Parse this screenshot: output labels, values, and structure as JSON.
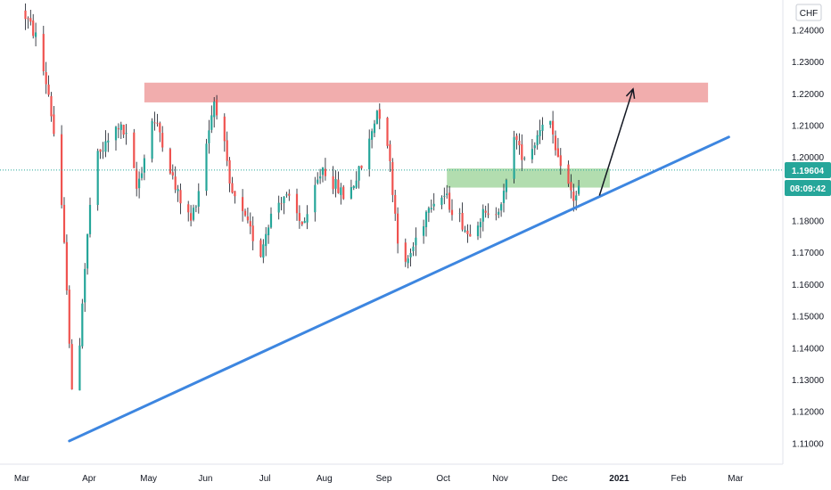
{
  "chart_data": {
    "type": "candlestick",
    "currency": "CHF",
    "ylim": [
      1.1035,
      1.2495
    ],
    "xlim": [
      0,
      308
    ],
    "y_ticks": [
      "1.24000",
      "1.23000",
      "1.22000",
      "1.21000",
      "1.20000",
      "1.19000",
      "1.18000",
      "1.17000",
      "1.16000",
      "1.15000",
      "1.14000",
      "1.13000",
      "1.12000",
      "1.11000"
    ],
    "y_tick_values": [
      1.24,
      1.23,
      1.22,
      1.21,
      1.2,
      1.19,
      1.18,
      1.17,
      1.16,
      1.15,
      1.14,
      1.13,
      1.12,
      1.11
    ],
    "x_ticks": [
      {
        "label": "Mar",
        "day": 0
      },
      {
        "label": "Apr",
        "day": 26
      },
      {
        "label": "May",
        "day": 49
      },
      {
        "label": "Jun",
        "day": 71
      },
      {
        "label": "Jul",
        "day": 94
      },
      {
        "label": "Aug",
        "day": 117
      },
      {
        "label": "Sep",
        "day": 140
      },
      {
        "label": "Oct",
        "day": 163
      },
      {
        "label": "Nov",
        "day": 185
      },
      {
        "label": "Dec",
        "day": 208
      },
      {
        "label": "2021",
        "day": 231
      },
      {
        "label": "Feb",
        "day": 254
      },
      {
        "label": "Mar",
        "day": 276
      }
    ],
    "price_path": [
      [
        0,
        1.246
      ],
      [
        5,
        1.238
      ],
      [
        10,
        1.22
      ],
      [
        14,
        1.195
      ],
      [
        17,
        1.16
      ],
      [
        19,
        1.125
      ],
      [
        21,
        1.13
      ],
      [
        23,
        1.155
      ],
      [
        26,
        1.185
      ],
      [
        29,
        1.2
      ],
      [
        33,
        1.205
      ],
      [
        37,
        1.21
      ],
      [
        41,
        1.205
      ],
      [
        44,
        1.19
      ],
      [
        47,
        1.2
      ],
      [
        50,
        1.212
      ],
      [
        53,
        1.208
      ],
      [
        56,
        1.2
      ],
      [
        59,
        1.19
      ],
      [
        62,
        1.185
      ],
      [
        65,
        1.18
      ],
      [
        68,
        1.19
      ],
      [
        71,
        1.205
      ],
      [
        74,
        1.218
      ],
      [
        77,
        1.21
      ],
      [
        80,
        1.19
      ],
      [
        83,
        1.185
      ],
      [
        86,
        1.18
      ],
      [
        89,
        1.175
      ],
      [
        92,
        1.17
      ],
      [
        95,
        1.18
      ],
      [
        98,
        1.185
      ],
      [
        101,
        1.188
      ],
      [
        104,
        1.185
      ],
      [
        107,
        1.18
      ],
      [
        110,
        1.18
      ],
      [
        113,
        1.19
      ],
      [
        116,
        1.197
      ],
      [
        119,
        1.193
      ],
      [
        122,
        1.19
      ],
      [
        125,
        1.187
      ],
      [
        128,
        1.192
      ],
      [
        131,
        1.197
      ],
      [
        134,
        1.205
      ],
      [
        137,
        1.215
      ],
      [
        139,
        1.213
      ],
      [
        141,
        1.205
      ],
      [
        143,
        1.19
      ],
      [
        145,
        1.175
      ],
      [
        147,
        1.163
      ],
      [
        149,
        1.168
      ],
      [
        151,
        1.172
      ],
      [
        153,
        1.177
      ],
      [
        155,
        1.18
      ],
      [
        157,
        1.186
      ],
      [
        160,
        1.187
      ],
      [
        163,
        1.188
      ],
      [
        166,
        1.184
      ],
      [
        169,
        1.181
      ],
      [
        172,
        1.176
      ],
      [
        175,
        1.18
      ],
      [
        178,
        1.182
      ],
      [
        181,
        1.18
      ],
      [
        184,
        1.185
      ],
      [
        186,
        1.188
      ],
      [
        188,
        1.195
      ],
      [
        190,
        1.208
      ],
      [
        192,
        1.202
      ],
      [
        195,
        1.2
      ],
      [
        198,
        1.205
      ],
      [
        201,
        1.212
      ],
      [
        203,
        1.216
      ],
      [
        205,
        1.205
      ],
      [
        207,
        1.198
      ],
      [
        209,
        1.2
      ],
      [
        211,
        1.191
      ],
      [
        213,
        1.187
      ],
      [
        215,
        1.19
      ]
    ],
    "current_price": "1.19604",
    "countdown": "08:09:42",
    "annotations": {
      "resistance_zone": {
        "x0": 46,
        "x1": 264,
        "y0": 1.2173,
        "y1": 1.2235
      },
      "support_zone": {
        "x0": 163,
        "x1": 226,
        "y0": 1.1905,
        "y1": 1.1965
      },
      "trendline": {
        "x0": 17,
        "y0": 1.1108,
        "x1": 272,
        "y1": 1.2064
      },
      "arrow": {
        "x0": 222,
        "y0": 1.188,
        "x1": 235,
        "y1": 1.2215
      },
      "price_line": 1.196
    },
    "colors": {
      "up": "#26a69a",
      "down": "#ef5350",
      "wick": "#131722",
      "resistance_fill": "#ec9191",
      "support_fill": "#9fd49b",
      "trendline": "#3d86e0",
      "arrow": "#131722",
      "price_line": "#26a69a",
      "badge": "#26a69a",
      "axis_bg": "#ffffff",
      "axis_text": "#131722",
      "axis_border": "#e0e3eb"
    }
  }
}
